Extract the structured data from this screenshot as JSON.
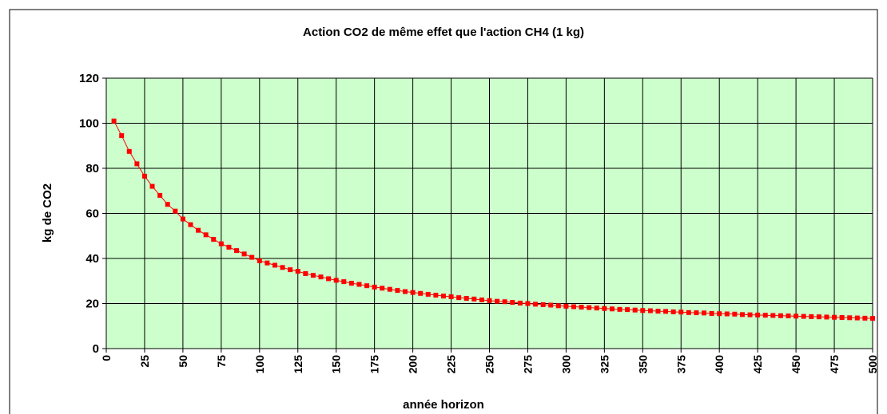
{
  "chart_data": {
    "type": "line",
    "title": "Action CO2 de même effet que l'action CH4 (1 kg)",
    "x_label": "année horizon",
    "y_label": "kg de CO2",
    "x": [
      5,
      10,
      15,
      20,
      25,
      30,
      35,
      40,
      45,
      50,
      55,
      60,
      65,
      70,
      75,
      80,
      85,
      90,
      95,
      100,
      105,
      110,
      115,
      120,
      125,
      130,
      135,
      140,
      145,
      150,
      155,
      160,
      165,
      170,
      175,
      180,
      185,
      190,
      195,
      200,
      205,
      210,
      215,
      220,
      225,
      230,
      235,
      240,
      245,
      250,
      255,
      260,
      265,
      270,
      275,
      280,
      285,
      290,
      295,
      300,
      305,
      310,
      315,
      320,
      325,
      330,
      335,
      340,
      345,
      350,
      355,
      360,
      365,
      370,
      375,
      380,
      385,
      390,
      395,
      400,
      405,
      410,
      415,
      420,
      425,
      430,
      435,
      440,
      445,
      450,
      455,
      460,
      465,
      470,
      475,
      480,
      485,
      490,
      495,
      500
    ],
    "series": [
      {
        "name": "kg de CO2",
        "color": "#ff0000",
        "values": [
          101,
          94.5,
          87.5,
          82,
          76.5,
          72,
          68,
          64,
          61,
          57.5,
          55,
          52.5,
          50.5,
          48.5,
          46.5,
          45,
          43.5,
          42,
          40.5,
          39,
          38,
          37,
          36,
          35,
          34.3,
          33.3,
          32.5,
          31.8,
          31,
          30.3,
          29.7,
          29,
          28.5,
          27.9,
          27.3,
          26.8,
          26.3,
          25.8,
          25.3,
          24.9,
          24.5,
          24.1,
          23.7,
          23.3,
          23,
          22.6,
          22.3,
          22,
          21.6,
          21.3,
          21,
          20.8,
          20.5,
          20.2,
          20,
          19.7,
          19.5,
          19.3,
          19,
          18.8,
          18.6,
          18.4,
          18.2,
          18,
          17.8,
          17.6,
          17.4,
          17.3,
          17.1,
          16.9,
          16.8,
          16.6,
          16.5,
          16.3,
          16.2,
          16,
          15.9,
          15.8,
          15.6,
          15.5,
          15.4,
          15.3,
          15.1,
          15,
          14.9,
          14.8,
          14.7,
          14.6,
          14.5,
          14.4,
          14.3,
          14.2,
          14.1,
          14,
          13.9,
          13.8,
          13.7,
          13.6,
          13.5,
          13.4
        ]
      }
    ],
    "xlim": [
      0,
      500
    ],
    "xticks": [
      0,
      25,
      50,
      75,
      100,
      125,
      150,
      175,
      200,
      225,
      250,
      275,
      300,
      325,
      350,
      375,
      400,
      425,
      450,
      475,
      500
    ],
    "ylim": [
      0,
      120
    ],
    "yticks": [
      0,
      20,
      40,
      60,
      80,
      100,
      120
    ],
    "grid": true,
    "plot_background": "#ccffcc"
  }
}
